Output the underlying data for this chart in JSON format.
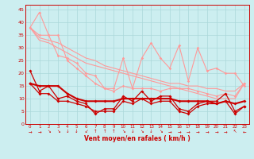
{
  "xlabel": "Vent moyen/en rafales ( km/h )",
  "x_ticks": [
    0,
    1,
    2,
    3,
    4,
    5,
    6,
    7,
    8,
    9,
    10,
    11,
    12,
    13,
    14,
    15,
    16,
    17,
    18,
    19,
    20,
    21,
    22,
    23
  ],
  "ylim": [
    0,
    47
  ],
  "yticks": [
    0,
    5,
    10,
    15,
    20,
    25,
    30,
    35,
    40,
    45
  ],
  "bg_color": "#cceef0",
  "grid_color": "#aad8da",
  "line1_y": [
    38,
    44,
    35,
    27,
    26,
    24,
    20,
    19,
    14,
    14,
    26,
    14,
    26,
    32,
    26,
    22,
    31,
    17,
    30,
    21,
    22,
    20,
    20,
    15
  ],
  "line2_y": [
    38,
    35,
    35,
    35,
    25,
    22,
    19,
    16,
    14,
    13,
    15,
    14,
    14,
    14,
    13,
    14,
    14,
    14,
    13,
    12,
    11,
    12,
    11,
    16
  ],
  "line3_y": [
    38,
    34,
    33,
    32,
    30,
    28,
    26,
    25,
    23,
    22,
    21,
    20,
    19,
    18,
    17,
    16,
    16,
    15,
    15,
    14,
    14,
    13,
    13,
    16
  ],
  "line4_y": [
    38,
    33,
    32,
    30,
    28,
    26,
    24,
    23,
    22,
    21,
    20,
    19,
    18,
    17,
    16,
    15,
    14,
    13,
    12,
    11,
    10,
    10,
    10,
    16
  ],
  "line5_y": [
    21,
    13,
    15,
    10,
    11,
    9,
    8,
    4,
    6,
    6,
    11,
    9,
    13,
    9,
    11,
    11,
    6,
    5,
    8,
    9,
    9,
    12,
    5,
    7
  ],
  "line6_y": [
    16,
    15,
    15,
    15,
    12,
    10,
    9,
    9,
    9,
    9,
    10,
    10,
    10,
    10,
    10,
    10,
    9,
    9,
    9,
    9,
    8,
    9,
    8,
    9
  ],
  "line7_y": [
    16,
    12,
    12,
    9,
    9,
    8,
    7,
    5,
    5,
    5,
    9,
    8,
    10,
    8,
    9,
    9,
    5,
    4,
    7,
    8,
    8,
    9,
    4,
    7
  ],
  "light_pink": "#ff9999",
  "dark_red": "#cc0000",
  "tick_color": "#cc0000",
  "spine_color": "#cc0000",
  "arrow_symbols": [
    "→",
    "→",
    "↘",
    "↘",
    "↓",
    "↓",
    "↙",
    "↑",
    "↑",
    "↑",
    "↘",
    "↓",
    "↘",
    "↓",
    "↘",
    "→",
    "→",
    "→",
    "→",
    "→",
    "→",
    "→",
    "↖",
    "←"
  ]
}
